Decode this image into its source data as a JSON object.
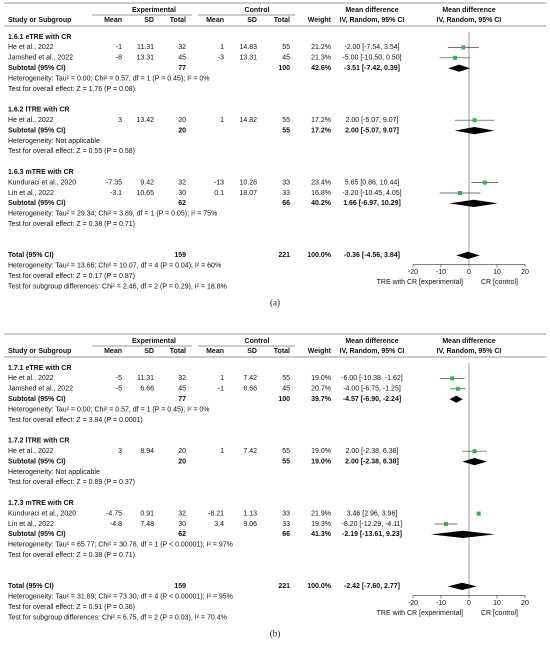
{
  "panels": [
    {
      "label": "(a)",
      "group_headers": [
        "Experimental",
        "Control",
        "Mean difference",
        "Mean difference"
      ],
      "column_headers": [
        "Study or Subgroup",
        "Mean",
        "SD",
        "Total",
        "Mean",
        "SD",
        "Total",
        "Weight",
        "IV, Random, 95% CI",
        "IV, Random, 95% CI"
      ],
      "subgroups": [
        {
          "title": "1.6.1 eTRE with CR",
          "studies": [
            {
              "name": "He et al., 2022",
              "exp": [
                -1,
                11.31,
                32
              ],
              "ctrl": [
                1,
                14.83,
                55
              ],
              "weight": "21.2%",
              "md": -2.0,
              "ci": [
                -7.54,
                3.54
              ],
              "ci_label": "-2.00 [-7.54, 3.54]"
            },
            {
              "name": "Jamshed et al., 2022",
              "exp": [
                -8,
                13.31,
                45
              ],
              "ctrl": [
                -3,
                13.31,
                45
              ],
              "weight": "21.3%",
              "md": -5.0,
              "ci": [
                -10.5,
                0.5
              ],
              "ci_label": "-5.00 [-10.50, 0.50]"
            }
          ],
          "subtotal": {
            "label": "Subtotal (95% CI)",
            "exp_total": 77,
            "ctrl_total": 100,
            "weight": "42.6%",
            "md": -3.51,
            "ci": [
              -7.42,
              0.39
            ],
            "ci_label": "-3.51 [-7.42, 0.39]"
          },
          "heterogeneity": "Heterogeneity: Tau² = 0.00; Chi² = 0.57, df = 1 (P = 0.45); I² = 0%",
          "overall": "Test for overall effect: Z = 1.76 (P = 0.08)"
        },
        {
          "title": "1.6.2 lTRE with CR",
          "studies": [
            {
              "name": "He et al., 2022",
              "exp": [
                3,
                13.42,
                20
              ],
              "ctrl": [
                1,
                14.82,
                55
              ],
              "weight": "17.2%",
              "md": 2.0,
              "ci": [
                -5.07,
                9.07
              ],
              "ci_label": "2.00 [-5.07, 9.07]"
            }
          ],
          "subtotal": {
            "label": "Subtotal (95% CI)",
            "exp_total": 20,
            "ctrl_total": 55,
            "weight": "17.2%",
            "md": 2.0,
            "ci": [
              -5.07,
              9.07
            ],
            "ci_label": "2.00 [-5.07, 9.07]"
          },
          "heterogeneity": "Heterogeneity: Not applicable",
          "overall": "Test for overall effect: Z = 0.55 (P = 0.58)"
        },
        {
          "title": "1.6.3 mTRE with CR",
          "studies": [
            {
              "name": "Kunduraci et al., 2020",
              "exp": [
                -7.35,
                9.42,
                32
              ],
              "ctrl": [
                -13,
                10.28,
                33
              ],
              "weight": "23.4%",
              "md": 5.65,
              "ci": [
                0.86,
                10.44
              ],
              "ci_label": "5.65 [0.86, 10.44]"
            },
            {
              "name": "Lin et al., 2022",
              "exp": [
                -3.1,
                10.65,
                30
              ],
              "ctrl": [
                0.1,
                18.07,
                33
              ],
              "weight": "16.8%",
              "md": -3.2,
              "ci": [
                -10.45,
                4.05
              ],
              "ci_label": "-3.20 [-10.45, 4.05]"
            }
          ],
          "subtotal": {
            "label": "Subtotal (95% CI)",
            "exp_total": 62,
            "ctrl_total": 66,
            "weight": "40.2%",
            "md": 1.66,
            "ci": [
              -6.97,
              10.29
            ],
            "ci_label": "1.66 [-6.97, 10.29]"
          },
          "heterogeneity": "Heterogeneity: Tau² = 29.34; Chi² = 3.89, df = 1 (P = 0.05); I² = 75%",
          "overall": "Test for overall effect: Z = 0.38 (P = 0.71)"
        }
      ],
      "total": {
        "label": "Total (95% CI)",
        "exp_total": 159,
        "ctrl_total": 221,
        "weight": "100.0%",
        "md": -0.36,
        "ci": [
          -4.56,
          3.84
        ],
        "ci_label": "-0.36 [-4.56, 3.84]",
        "heterogeneity": "Heterogeneity: Tau² = 13.66; Chi² = 10.07, df = 4 (P = 0.04); I² = 60%",
        "overall": "Test for overall effect: Z = 0.17 (P = 0.87)"
      },
      "subgroup_test": "Test for subgroup differences: Chi² = 2.46, df = 2 (P = 0.29), I² = 18.8%",
      "axis": {
        "xlim": [
          -20,
          20
        ],
        "xticks": [
          -20,
          -10,
          0,
          10,
          20
        ],
        "favours": [
          "TRE with CR [experimental]",
          "CR [control]"
        ]
      }
    },
    {
      "label": "(b)",
      "group_headers": [
        "Experimental",
        "Control",
        "Mean difference",
        "Mean difference"
      ],
      "column_headers": [
        "Study or Subgroup",
        "Mean",
        "SD",
        "Total",
        "Mean",
        "SD",
        "Total",
        "Weight",
        "IV, Random, 95% CI",
        "IV, Random, 95% CI"
      ],
      "subgroups": [
        {
          "title": "1.7.1 eTRE with CR",
          "studies": [
            {
              "name": "He et al., 2022",
              "exp": [
                -5,
                11.31,
                32
              ],
              "ctrl": [
                1,
                7.42,
                55
              ],
              "weight": "19.0%",
              "md": -6.0,
              "ci": [
                -10.38,
                -1.62
              ],
              "ci_label": "-6.00 [-10.38, -1.62]"
            },
            {
              "name": "Jamshed et al., 2022",
              "exp": [
                -5,
                6.66,
                45
              ],
              "ctrl": [
                -1,
                6.66,
                45
              ],
              "weight": "20.7%",
              "md": -4.0,
              "ci": [
                -6.75,
                -1.25
              ],
              "ci_label": "-4.00 [-6.75, -1.25]"
            }
          ],
          "subtotal": {
            "label": "Subtotal (95% CI)",
            "exp_total": 77,
            "ctrl_total": 100,
            "weight": "39.7%",
            "md": -4.57,
            "ci": [
              -6.9,
              -2.24
            ],
            "ci_label": "-4.57 [-6.90, -2.24]"
          },
          "heterogeneity": "Heterogeneity: Tau² = 0.00; Chi² = 0.57, df = 1 (P = 0.45); I² = 0%",
          "overall": "Test for overall effect: Z = 3.84 (P = 0.0001)"
        },
        {
          "title": "1.7.2 lTRE with CR",
          "studies": [
            {
              "name": "He et al., 2022",
              "exp": [
                3,
                8.94,
                20
              ],
              "ctrl": [
                1,
                7.42,
                55
              ],
              "weight": "19.0%",
              "md": 2.0,
              "ci": [
                -2.38,
                6.38
              ],
              "ci_label": "2.00 [-2.38, 6.38]"
            }
          ],
          "subtotal": {
            "label": "Subtotal (95% CI)",
            "exp_total": 20,
            "ctrl_total": 55,
            "weight": "19.0%",
            "md": 2.0,
            "ci": [
              -2.38,
              6.38
            ],
            "ci_label": "2.00 [-2.38, 6.38]"
          },
          "heterogeneity": "Heterogeneity: Not applicable",
          "overall": "Test for overall effect: Z = 0.89 (P = 0.37)"
        },
        {
          "title": "1.7.3 mTRE with CR",
          "studies": [
            {
              "name": "Kunduraci et al., 2020",
              "exp": [
                -4.75,
                0.91,
                32
              ],
              "ctrl": [
                -8.21,
                1.13,
                33
              ],
              "weight": "21.9%",
              "md": 3.46,
              "ci": [
                2.96,
                3.96
              ],
              "ci_label": "3.46 [2.96, 3.96]"
            },
            {
              "name": "Lin et al., 2022",
              "exp": [
                -4.8,
                7.48,
                30
              ],
              "ctrl": [
                3.4,
                9.06,
                33
              ],
              "weight": "19.3%",
              "md": -8.2,
              "ci": [
                -12.29,
                -4.11
              ],
              "ci_label": "-8.20 [-12.29, -4.11]"
            }
          ],
          "subtotal": {
            "label": "Subtotal (95% CI)",
            "exp_total": 62,
            "ctrl_total": 66,
            "weight": "41.3%",
            "md": -2.19,
            "ci": [
              -13.61,
              9.23
            ],
            "ci_label": "-2.19 [-13.61, 9.23]"
          },
          "heterogeneity": "Heterogeneity: Tau² = 65.77; Chi² = 30.78, df = 1 (P < 0.00001); I² = 97%",
          "overall": "Test for overall effect: Z = 0.38 (P = 0.71)"
        }
      ],
      "total": {
        "label": "Total (95% CI)",
        "exp_total": 159,
        "ctrl_total": 221,
        "weight": "100.0%",
        "md": -2.42,
        "ci": [
          -7.6,
          2.77
        ],
        "ci_label": "-2.42 [-7.60, 2.77]",
        "heterogeneity": "Heterogeneity: Tau² = 31.89; Chi² = 73.30, df = 4 (P < 0.00001); I² = 95%",
        "overall": "Test for overall effect: Z = 0.91 (P = 0.36)"
      },
      "subgroup_test": "Test for subgroup differences: Chi² = 6.75, df = 2 (P = 0.03), I² = 70.4%",
      "axis": {
        "xlim": [
          -20,
          20
        ],
        "xticks": [
          -20,
          -10,
          0,
          10,
          20
        ],
        "favours": [
          "TRE with CR [experimental]",
          "CR [control]"
        ]
      }
    }
  ]
}
